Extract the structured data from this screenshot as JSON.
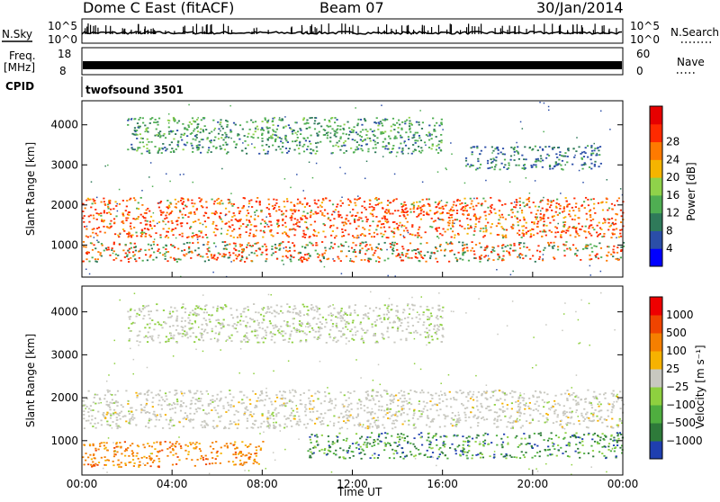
{
  "header": {
    "station": "Dome C East (fitACF)",
    "beam": "Beam 07",
    "date": "30/Jan/2014"
  },
  "labels": {
    "nsky": "N.Sky",
    "nsearch": "N.Search",
    "freq_line1": "Freq.",
    "freq_line2": "[MHz]",
    "nave": "Nave",
    "cpid": "CPID",
    "program": "twofsound 3501"
  },
  "chart_data": [
    {
      "type": "line",
      "panel": "noise",
      "left_ticks": [
        "10^5",
        "10^0"
      ],
      "right_ticks": [
        "10^5",
        "10^0"
      ],
      "left_label": "N.Sky",
      "right_label": "N.Search"
    },
    {
      "type": "line",
      "panel": "frequency",
      "left_ticks": [
        "18",
        "8"
      ],
      "right_ticks": [
        "60",
        "0"
      ],
      "left_label": "Freq. [MHz]",
      "right_label": "Nave"
    },
    {
      "type": "heatmap",
      "panel": "power",
      "ylabel": "Slant Range [km]",
      "ylim": [
        200,
        4600
      ],
      "yticks": [
        "1000",
        "2000",
        "3000",
        "4000"
      ],
      "colorbar_label": "Power [dB]",
      "colorbar_ticks": [
        "4",
        "8",
        "12",
        "16",
        "20",
        "24",
        "28"
      ],
      "colorbar_colors": [
        "#0000ff",
        "#2b4ea8",
        "#2f7a5a",
        "#4fae52",
        "#8fd24a",
        "#f5b400",
        "#ff7a00",
        "#ff2a00",
        "#e60000"
      ],
      "bands": [
        {
          "t0": 0,
          "t1": 24,
          "r0": 1200,
          "r1": 2200,
          "level": "high"
        },
        {
          "t0": 0,
          "t1": 24,
          "r0": 600,
          "r1": 1100,
          "level": "medium"
        },
        {
          "t0": 2,
          "t1": 16,
          "r0": 3300,
          "r1": 4200,
          "level": "low"
        },
        {
          "t0": 17,
          "t1": 23,
          "r0": 2900,
          "r1": 3500,
          "level": "weak"
        }
      ]
    },
    {
      "type": "heatmap",
      "panel": "velocity",
      "ylabel": "Slant Range [km]",
      "xlabel": "Time UT",
      "ylim": [
        200,
        4600
      ],
      "yticks": [
        "1000",
        "2000",
        "3000",
        "4000"
      ],
      "xticks": [
        "00:00",
        "04:00",
        "08:00",
        "12:00",
        "16:00",
        "20:00",
        "00:00"
      ],
      "colorbar_label": "Velocity [m s⁻¹]",
      "colorbar_ticks": [
        "1000",
        "500",
        "100",
        "25",
        "−25",
        "−100",
        "−500",
        "−1000"
      ],
      "colorbar_colors": [
        "#1f3fb0",
        "#2e7a3a",
        "#4fae3f",
        "#8ed03f",
        "#c8c8c0",
        "#f6b200",
        "#f57f00",
        "#f04400",
        "#ee0000"
      ],
      "bands": [
        {
          "t0": 0,
          "t1": 24,
          "r0": 1300,
          "r1": 2200,
          "level": "ground"
        },
        {
          "t0": 0,
          "t1": 8,
          "r0": 400,
          "r1": 1000,
          "level": "negative"
        },
        {
          "t0": 10,
          "t1": 24,
          "r0": 600,
          "r1": 1200,
          "level": "positive"
        },
        {
          "t0": 2,
          "t1": 16,
          "r0": 3300,
          "r1": 4200,
          "level": "faint"
        }
      ]
    }
  ]
}
